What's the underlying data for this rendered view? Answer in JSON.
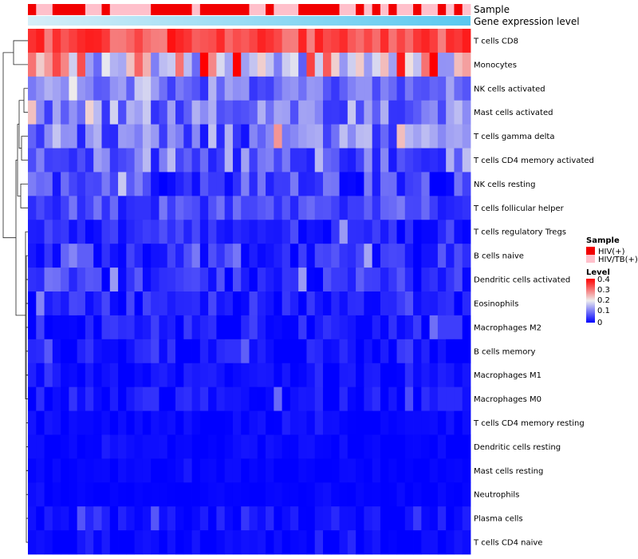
{
  "chart_data": {
    "type": "heatmap",
    "n_columns": 54,
    "annotation_tracks": [
      {
        "name": "Sample"
      },
      {
        "name": "Gene expression level"
      }
    ],
    "sample_annotation": [
      "H",
      "T",
      "T",
      "H",
      "H",
      "H",
      "H",
      "T",
      "T",
      "H",
      "T",
      "T",
      "T",
      "T",
      "T",
      "H",
      "H",
      "H",
      "H",
      "H",
      "T",
      "H",
      "H",
      "H",
      "H",
      "H",
      "H",
      "T",
      "T",
      "H",
      "T",
      "T",
      "T",
      "H",
      "H",
      "H",
      "H",
      "H",
      "T",
      "T",
      "H",
      "T",
      "H",
      "T",
      "H",
      "T",
      "T",
      "H",
      "T",
      "T",
      "H",
      "T",
      "H",
      "T"
    ],
    "expression_gradient": {
      "from": "#d6eef8",
      "to": "#5ac8ef"
    },
    "legends": {
      "sample": {
        "title": "Sample",
        "entries": [
          {
            "key": "H",
            "label": "HIV(+)",
            "color": "#f20000"
          },
          {
            "key": "T",
            "label": "HIV/TB(+)",
            "color": "#ffc0cb"
          }
        ]
      },
      "level": {
        "title": "Level",
        "ticks": [
          "0.4",
          "0.3",
          "0.2",
          "0.1",
          "0"
        ],
        "range": [
          0,
          0.4
        ],
        "colors": {
          "low": "#0000ff",
          "mid": "#eeeeee",
          "high": "#ff0000"
        }
      }
    },
    "rows": [
      {
        "label": "T cells CD8",
        "base": 0.34,
        "spread": 0.05
      },
      {
        "label": "Monocytes",
        "base": 0.2,
        "spread": 0.13
      },
      {
        "label": "NK cells activated",
        "base": 0.09,
        "spread": 0.05
      },
      {
        "label": "Mast cells activated",
        "base": 0.1,
        "spread": 0.06
      },
      {
        "label": "T cells gamma delta",
        "base": 0.09,
        "spread": 0.08
      },
      {
        "label": "T cells CD4 memory activated",
        "base": 0.09,
        "spread": 0.07
      },
      {
        "label": "NK cells resting",
        "base": 0.05,
        "spread": 0.06
      },
      {
        "label": "T cells follicular helper",
        "base": 0.06,
        "spread": 0.04
      },
      {
        "label": "T cells regulatory  Tregs",
        "base": 0.03,
        "spread": 0.04
      },
      {
        "label": "B cells naive",
        "base": 0.04,
        "spread": 0.04
      },
      {
        "label": "Dendritic cells activated",
        "base": 0.035,
        "spread": 0.04
      },
      {
        "label": "Eosinophils",
        "base": 0.025,
        "spread": 0.035
      },
      {
        "label": "Macrophages M2",
        "base": 0.02,
        "spread": 0.035
      },
      {
        "label": "B cells memory",
        "base": 0.015,
        "spread": 0.03
      },
      {
        "label": "Macrophages M1",
        "base": 0.01,
        "spread": 0.02
      },
      {
        "label": "Macrophages M0",
        "base": 0.015,
        "spread": 0.03
      },
      {
        "label": "T cells CD4 memory resting",
        "base": 0.005,
        "spread": 0.012
      },
      {
        "label": "Dendritic cells resting",
        "base": 0.005,
        "spread": 0.012
      },
      {
        "label": "Mast cells resting",
        "base": 0.003,
        "spread": 0.008
      },
      {
        "label": "Neutrophils",
        "base": 0.003,
        "spread": 0.006
      },
      {
        "label": "Plasma cells",
        "base": 0.01,
        "spread": 0.025
      },
      {
        "label": "T cells CD4 naive",
        "base": 0.005,
        "spread": 0.015
      }
    ]
  }
}
